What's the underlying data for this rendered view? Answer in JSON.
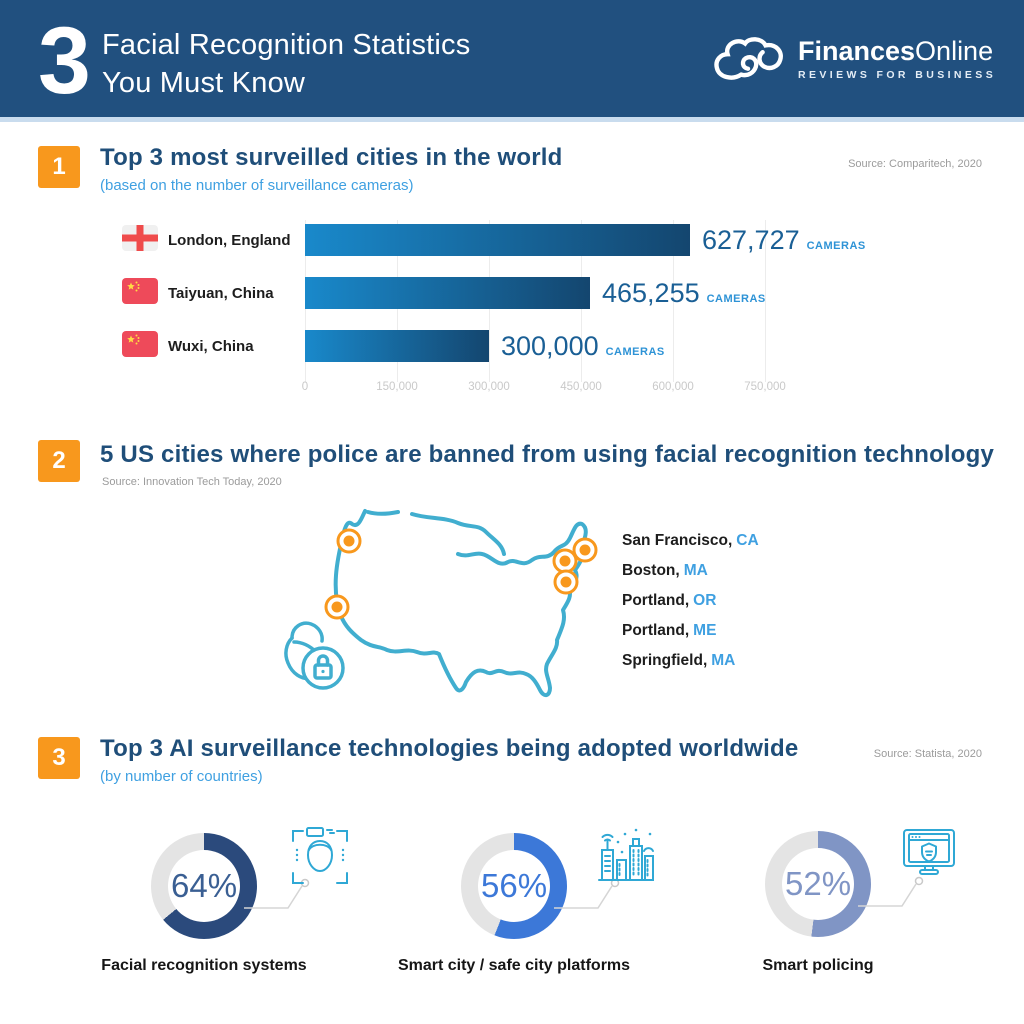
{
  "header": {
    "big_number": "3",
    "title_line1": "Facial Recognition Statistics",
    "title_line2": "You Must Know",
    "brand_bold": "Finances",
    "brand_light": "Online",
    "tagline": "REVIEWS FOR BUSINESS"
  },
  "section1": {
    "number": "1",
    "title": "Top 3 most surveilled cities in the world",
    "subtitle": "(based on the number of surveillance cameras)",
    "source": "Source: Comparitech, 2020"
  },
  "section2": {
    "number": "2",
    "title": "5 US cities where police are banned from using facial recognition technology",
    "source": "Source: Innovation Tech Today, 2020",
    "cities": [
      {
        "name": "San Francisco,",
        "state": "CA"
      },
      {
        "name": "Boston,",
        "state": "MA"
      },
      {
        "name": "Portland,",
        "state": "OR"
      },
      {
        "name": "Portland,",
        "state": "ME"
      },
      {
        "name": "Springfield,",
        "state": "MA"
      }
    ]
  },
  "section3": {
    "number": "3",
    "title": "Top 3 AI surveillance technologies being adopted worldwide",
    "subtitle": "(by number of countries)",
    "source": "Source: Statista, 2020"
  },
  "colors": {
    "header_bg": "#21507F",
    "accent_orange": "#F8981D",
    "title_navy": "#1F4E79",
    "light_blue": "#3FA0E1",
    "map_stroke": "#41AECF",
    "icon_teal": "#2FA8D5",
    "bar_gradient_start": "#1989CB",
    "bar_gradient_end": "#14466F",
    "donut_track": "#E4E4E4"
  },
  "chart_data": [
    {
      "type": "bar",
      "orientation": "horizontal",
      "title": "Top 3 most surveilled cities in the world",
      "subtitle": "(based on the number of surveillance cameras)",
      "source": "Source: Comparitech, 2020",
      "categories": [
        "London, England",
        "Taiyuan, China",
        "Wuxi, China"
      ],
      "flags": [
        "england-flag",
        "china-flag",
        "china-flag"
      ],
      "values": [
        627727,
        465255,
        300000
      ],
      "value_labels": [
        "627,727",
        "465,255",
        "300,000"
      ],
      "unit": "CAMERAS",
      "xlim": [
        0,
        750000
      ],
      "xticks": [
        0,
        150000,
        300000,
        450000,
        600000,
        750000
      ],
      "xtick_labels": [
        "0",
        "150,000",
        "300,000",
        "450,000",
        "600,000",
        "750,000"
      ],
      "grid": true
    },
    {
      "type": "map",
      "title": "5 US cities where police are banned from using facial recognition technology",
      "source": "Source: Innovation Tech Today, 2020",
      "points": [
        "San Francisco, CA",
        "Boston, MA",
        "Portland, OR",
        "Portland, ME",
        "Springfield, MA"
      ]
    },
    {
      "type": "pie",
      "variant": "donut",
      "title": "Top 3 AI surveillance technologies being adopted worldwide",
      "subtitle": "(by number of countries)",
      "source": "Source: Statista, 2020",
      "categories": [
        "Facial recognition systems",
        "Smart city / safe city platforms",
        "Smart policing"
      ],
      "values": [
        64,
        56,
        52
      ],
      "unit": "%",
      "colors": [
        "#2B4A7C",
        "#3C78D8",
        "#8095C5"
      ],
      "value_colors": [
        "#3A5F93",
        "#3C78D8",
        "#8095C5"
      ],
      "icons": [
        "face-scan-icon",
        "smart-city-icon",
        "smart-policing-icon"
      ]
    }
  ]
}
